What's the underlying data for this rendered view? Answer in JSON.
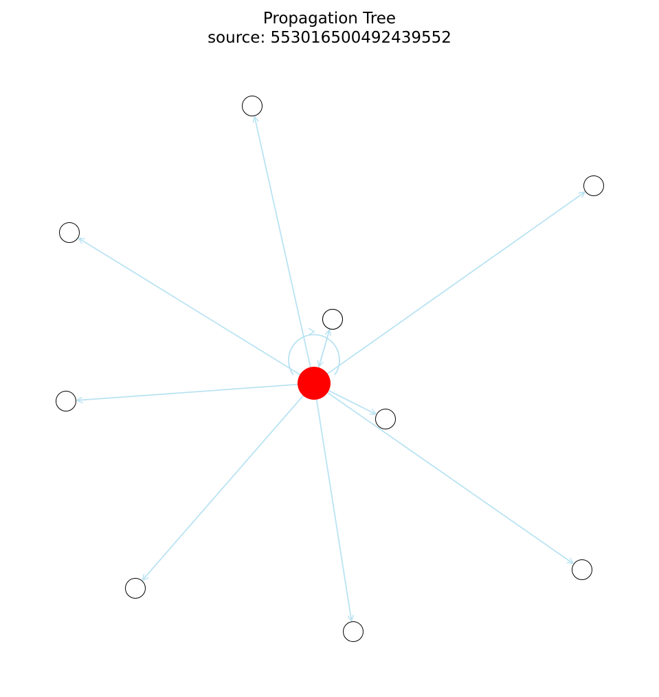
{
  "title": {
    "line1": "Propagation Tree",
    "line2": "source: 553016500492439552"
  },
  "colors": {
    "edge": "#b9e3f2",
    "source_node": "#ff0000",
    "child_fill": "#ffffff",
    "child_stroke": "#000000",
    "background": "#ffffff"
  },
  "graph": {
    "source": {
      "id": "553016500492439552",
      "role": "source"
    },
    "children": [
      {
        "id": "c1",
        "role": "retweet"
      },
      {
        "id": "c2",
        "role": "retweet"
      },
      {
        "id": "c3",
        "role": "retweet"
      },
      {
        "id": "c4",
        "role": "retweet"
      },
      {
        "id": "c5",
        "role": "retweet"
      },
      {
        "id": "c6",
        "role": "retweet"
      },
      {
        "id": "c7",
        "role": "retweet"
      },
      {
        "id": "c8",
        "role": "retweet"
      },
      {
        "id": "c9",
        "role": "retweet"
      },
      {
        "id": "c10",
        "role": "retweet"
      }
    ],
    "edges": [
      {
        "from": "553016500492439552",
        "to": "553016500492439552",
        "self_loop": true
      },
      {
        "from": "c1",
        "to": "553016500492439552"
      },
      {
        "from": "553016500492439552",
        "to": "c2"
      },
      {
        "from": "553016500492439552",
        "to": "c3"
      },
      {
        "from": "553016500492439552",
        "to": "c4"
      },
      {
        "from": "553016500492439552",
        "to": "c5"
      },
      {
        "from": "553016500492439552",
        "to": "c6"
      },
      {
        "from": "553016500492439552",
        "to": "c7"
      },
      {
        "from": "553016500492439552",
        "to": "c8"
      },
      {
        "from": "553016500492439552",
        "to": "c9"
      },
      {
        "from": "553016500492439552",
        "to": "c10"
      }
    ]
  }
}
